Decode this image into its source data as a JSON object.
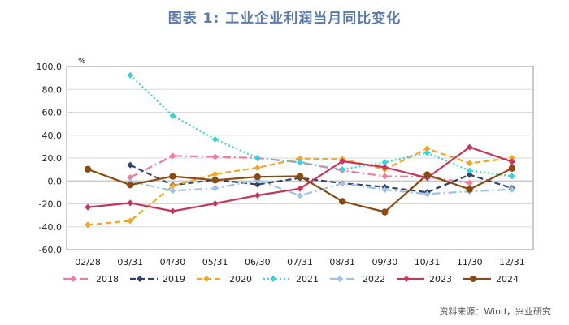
{
  "title": "图表 1:   工业企业利润当月同比变化",
  "source": "资料来源：Wind，兴业研究",
  "chart_data": {
    "type": "line",
    "title": "工业企业利润当月同比变化",
    "ylabel": "%",
    "ylabel_text": "%",
    "ylim": [
      -60,
      100
    ],
    "yticks": [
      "100.0",
      "80.0",
      "60.0",
      "40.0",
      "20.0",
      "0.0",
      "-20.0",
      "-40.0",
      "-60.0"
    ],
    "ytick_values": [
      100,
      80,
      60,
      40,
      20,
      0,
      -20,
      -40,
      -60
    ],
    "categories": [
      "02/28",
      "03/31",
      "04/30",
      "05/31",
      "06/30",
      "07/31",
      "08/31",
      "09/30",
      "10/31",
      "11/30",
      "12/31"
    ],
    "series": [
      {
        "name": "2018",
        "color": "#f07ba0",
        "dash": "10,4,2,4",
        "marker": "diamond",
        "values": [
          null,
          3.1,
          21.9,
          21.1,
          20.0,
          16.2,
          9.2,
          4.1,
          3.6,
          -1.8,
          null
        ]
      },
      {
        "name": "2019",
        "color": "#2e4466",
        "dash": "7,4",
        "marker": "diamond",
        "values": [
          null,
          13.9,
          -3.7,
          1.1,
          -3.1,
          2.6,
          -2.0,
          -5.3,
          -9.9,
          5.4,
          -6.3
        ]
      },
      {
        "name": "2020",
        "color": "#f2a627",
        "dash": "7,4",
        "marker": "diamond",
        "values": [
          -38.3,
          -34.9,
          -4.3,
          6.0,
          11.5,
          19.6,
          19.1,
          10.1,
          28.2,
          15.5,
          20.1
        ]
      },
      {
        "name": "2021",
        "color": "#3fd0d8",
        "dash": "2,3",
        "marker": "diamond",
        "values": [
          null,
          92.3,
          57.0,
          36.4,
          20.0,
          16.4,
          10.1,
          16.3,
          24.6,
          9.0,
          4.2
        ]
      },
      {
        "name": "2022",
        "color": "#9dc2e6",
        "dash": "10,4,2,4",
        "marker": "diamond",
        "values": [
          null,
          -0.5,
          -8.5,
          -6.5,
          0.8,
          -12.8,
          -2.1,
          -7.7,
          -11.4,
          -9.1,
          -7.4
        ]
      },
      {
        "name": "2023",
        "color": "#c6365c",
        "dash": "",
        "marker": "diamond",
        "values": [
          -22.9,
          -19.2,
          -26.4,
          -19.7,
          -12.6,
          -6.7,
          17.2,
          11.9,
          2.7,
          29.5,
          16.8
        ]
      },
      {
        "name": "2024",
        "color": "#8a4a10",
        "dash": "",
        "marker": "circle",
        "values": [
          10.2,
          -3.5,
          4.0,
          0.7,
          3.6,
          4.1,
          -17.8,
          -27.1,
          5.4,
          -7.3,
          11.0
        ]
      }
    ]
  }
}
